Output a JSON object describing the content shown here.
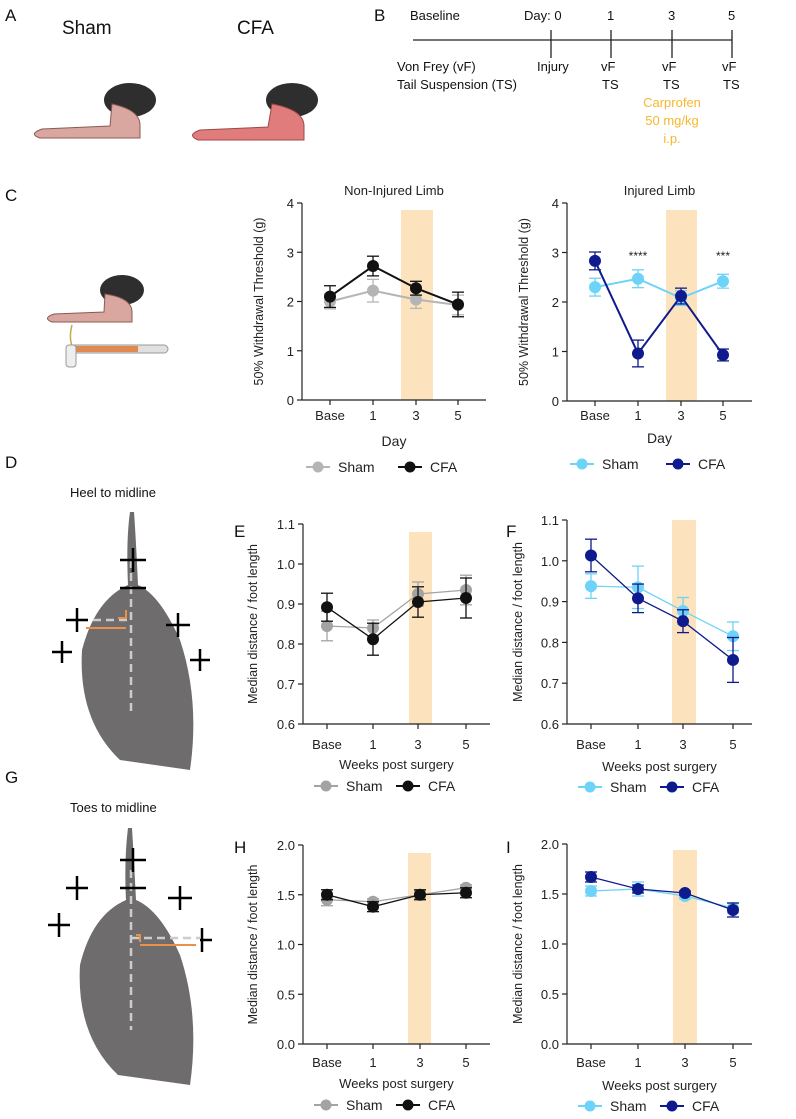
{
  "panels": {
    "A": {
      "letter": "A",
      "sham_label": "Sham",
      "cfa_label": "CFA"
    },
    "B": {
      "letter": "B",
      "timeline_top": [
        "Baseline",
        "Day: 0",
        "1",
        "3",
        "5"
      ],
      "left_label_1": "Von Frey (vF)",
      "left_label_2": "Tail Suspension (TS)",
      "injury": "Injury",
      "vf": "vF",
      "ts": "TS",
      "carprofen": [
        "Carprofen",
        "50 mg/kg",
        "i.p."
      ],
      "carprofen_color": "#f5b82e"
    },
    "C": {
      "letter": "C"
    },
    "D": {
      "letter": "D",
      "title": "Heel to midline"
    },
    "E": {
      "letter": "E"
    },
    "F": {
      "letter": "F"
    },
    "G": {
      "letter": "G",
      "title": "Toes to midline"
    },
    "H": {
      "letter": "H"
    },
    "I": {
      "letter": "I"
    }
  },
  "colors": {
    "band": "#fde3bd",
    "sham_gray": "#b5b5b5",
    "sham_gray_dark": "#a3a3a3",
    "cfa_black": "#111111",
    "sham_blue": "#6dd3f8",
    "cfa_navy": "#0f1a8c"
  },
  "chart_data": [
    {
      "id": "C-left",
      "type": "line",
      "title": "Non-Injured Limb",
      "xlabel": "Day",
      "ylabel": "50% Withdrawal Threshold (g)",
      "categories": [
        "Base",
        "1",
        "3",
        "5"
      ],
      "ylim": [
        0,
        4
      ],
      "yticks": [
        "0",
        "1",
        "2",
        "3",
        "4"
      ],
      "shaded_category": "3",
      "legend": "bottom",
      "series": [
        {
          "name": "Sham",
          "color": "#b5b5b5",
          "values": [
            2.0,
            2.22,
            2.04,
            1.93
          ],
          "errors": [
            0.15,
            0.23,
            0.18,
            0.2
          ]
        },
        {
          "name": "CFA",
          "color": "#111111",
          "values": [
            2.1,
            2.72,
            2.27,
            1.94
          ],
          "errors": [
            0.22,
            0.2,
            0.14,
            0.25
          ]
        }
      ],
      "annotations": []
    },
    {
      "id": "C-right",
      "type": "line",
      "title": "Injured Limb",
      "xlabel": "Day",
      "ylabel": "50% Withdrawal Threshold (g)",
      "categories": [
        "Base",
        "1",
        "3",
        "5"
      ],
      "ylim": [
        0,
        4
      ],
      "yticks": [
        "0",
        "1",
        "2",
        "3",
        "4"
      ],
      "shaded_category": "3",
      "legend": "bottom",
      "series": [
        {
          "name": "Sham",
          "color": "#6dd3f8",
          "values": [
            2.3,
            2.47,
            2.08,
            2.42
          ],
          "errors": [
            0.18,
            0.18,
            0.15,
            0.14
          ]
        },
        {
          "name": "CFA",
          "color": "#0f1a8c",
          "values": [
            2.83,
            0.96,
            2.12,
            0.93
          ],
          "errors": [
            0.18,
            0.27,
            0.16,
            0.12
          ]
        }
      ],
      "annotations": [
        {
          "category": "1",
          "text": "****"
        },
        {
          "category": "5",
          "text": "***"
        }
      ]
    },
    {
      "id": "E",
      "type": "line",
      "title": "",
      "xlabel": "Weeks post surgery",
      "ylabel": "Median distance / foot length",
      "categories": [
        "Base",
        "1",
        "3",
        "5"
      ],
      "ylim": [
        0.6,
        1.1
      ],
      "yticks": [
        "0.6",
        "0.7",
        "0.8",
        "0.9",
        "1.0",
        "1.1"
      ],
      "shaded_category": "3",
      "legend": "bottom",
      "series": [
        {
          "name": "Sham",
          "color": "#a3a3a3",
          "values": [
            0.845,
            0.84,
            0.925,
            0.935
          ],
          "errors": [
            0.037,
            0.02,
            0.03,
            0.037
          ]
        },
        {
          "name": "CFA",
          "color": "#111111",
          "values": [
            0.892,
            0.812,
            0.905,
            0.915
          ],
          "errors": [
            0.035,
            0.04,
            0.038,
            0.05
          ]
        }
      ],
      "annotations": []
    },
    {
      "id": "F",
      "type": "line",
      "title": "",
      "xlabel": "Weeks post surgery",
      "ylabel": "Median distance / foot length",
      "categories": [
        "Base",
        "1",
        "3",
        "5"
      ],
      "ylim": [
        0.6,
        1.1
      ],
      "yticks": [
        "0.6",
        "0.7",
        "0.8",
        "0.9",
        "1.0",
        "1.1"
      ],
      "shaded_category": "3",
      "legend": "bottom",
      "series": [
        {
          "name": "Sham",
          "color": "#6dd3f8",
          "values": [
            0.938,
            0.935,
            0.877,
            0.815
          ],
          "errors": [
            0.03,
            0.052,
            0.033,
            0.035
          ]
        },
        {
          "name": "CFA",
          "color": "#0f1a8c",
          "values": [
            1.013,
            0.908,
            0.852,
            0.757
          ],
          "errors": [
            0.04,
            0.035,
            0.028,
            0.055
          ]
        }
      ],
      "annotations": []
    },
    {
      "id": "H",
      "type": "line",
      "title": "",
      "xlabel": "Weeks post surgery",
      "ylabel": "Median distance / foot length",
      "categories": [
        "Base",
        "1",
        "3",
        "5"
      ],
      "ylim": [
        0,
        2
      ],
      "yticks": [
        "0.0",
        "0.5",
        "1.0",
        "1.5",
        "2.0"
      ],
      "shaded_category": "3",
      "legend": "bottom",
      "series": [
        {
          "name": "Sham",
          "color": "#a3a3a3",
          "values": [
            1.45,
            1.43,
            1.5,
            1.57
          ],
          "errors": [
            0.06,
            0.03,
            0.04,
            0.03
          ]
        },
        {
          "name": "CFA",
          "color": "#111111",
          "values": [
            1.5,
            1.38,
            1.5,
            1.52
          ],
          "errors": [
            0.05,
            0.05,
            0.05,
            0.05
          ]
        }
      ],
      "annotations": []
    },
    {
      "id": "I",
      "type": "line",
      "title": "",
      "xlabel": "Weeks post surgery",
      "ylabel": "Median distance / foot length",
      "categories": [
        "Base",
        "1",
        "3",
        "5"
      ],
      "ylim": [
        0,
        2
      ],
      "yticks": [
        "0.0",
        "0.5",
        "1.0",
        "1.5",
        "2.0"
      ],
      "shaded_category": "3",
      "legend": "bottom",
      "series": [
        {
          "name": "Sham",
          "color": "#6dd3f8",
          "values": [
            1.53,
            1.55,
            1.48,
            1.36
          ],
          "errors": [
            0.05,
            0.07,
            0.03,
            0.05
          ]
        },
        {
          "name": "CFA",
          "color": "#0f1a8c",
          "values": [
            1.67,
            1.55,
            1.51,
            1.34
          ],
          "errors": [
            0.05,
            0.04,
            0.02,
            0.07
          ]
        }
      ],
      "annotations": []
    }
  ]
}
